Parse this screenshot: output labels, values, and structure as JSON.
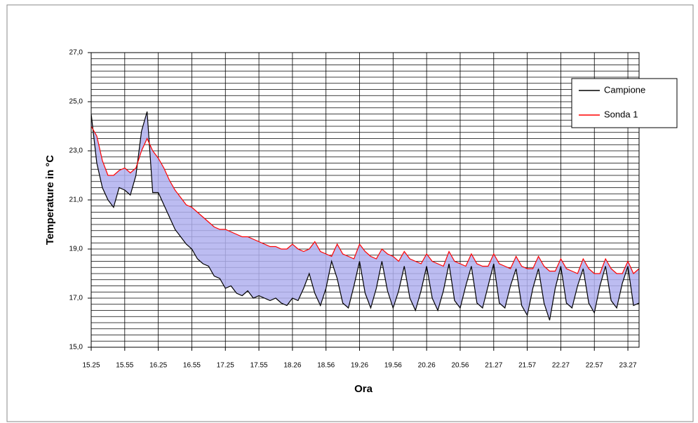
{
  "chart_data": {
    "type": "line",
    "xlabel": "Ora",
    "ylabel": "Temperature in °C",
    "categories": [
      "15.25",
      null,
      null,
      null,
      null,
      null,
      "15.55",
      null,
      null,
      null,
      null,
      null,
      "16.25",
      null,
      null,
      null,
      null,
      null,
      "16.55",
      null,
      null,
      null,
      null,
      null,
      "17.25",
      null,
      null,
      null,
      null,
      null,
      "17.55",
      null,
      null,
      null,
      null,
      null,
      "18.26",
      null,
      null,
      null,
      null,
      null,
      "18.56",
      null,
      null,
      null,
      null,
      null,
      "19.26",
      null,
      null,
      null,
      null,
      null,
      "19.56",
      null,
      null,
      null,
      null,
      null,
      "20.26",
      null,
      null,
      null,
      null,
      null,
      "20.56",
      null,
      null,
      null,
      null,
      null,
      "21.27",
      null,
      null,
      null,
      null,
      null,
      "21.57",
      null,
      null,
      null,
      null,
      null,
      "22.27",
      null,
      null,
      null,
      null,
      null,
      "22.57",
      null,
      null,
      null,
      null,
      null,
      "23.27",
      null,
      null
    ],
    "series": [
      {
        "name": "Campione",
        "color": "#000000",
        "values": [
          24.5,
          22.5,
          21.5,
          21.0,
          20.7,
          21.5,
          21.4,
          21.2,
          22.0,
          23.8,
          24.6,
          21.3,
          21.3,
          20.8,
          20.3,
          19.8,
          19.5,
          19.2,
          19.0,
          18.6,
          18.4,
          18.3,
          17.9,
          17.8,
          17.4,
          17.5,
          17.2,
          17.1,
          17.3,
          17.0,
          17.1,
          17.0,
          16.9,
          17.0,
          16.8,
          16.7,
          17.0,
          16.9,
          17.4,
          18.0,
          17.2,
          16.7,
          17.4,
          18.5,
          17.8,
          16.8,
          16.6,
          17.5,
          18.5,
          17.2,
          16.6,
          17.4,
          18.5,
          17.3,
          16.6,
          17.3,
          18.3,
          17.0,
          16.5,
          17.3,
          18.3,
          17.0,
          16.5,
          17.3,
          18.4,
          16.9,
          16.6,
          17.5,
          18.3,
          16.8,
          16.6,
          17.5,
          18.4,
          16.8,
          16.6,
          17.5,
          18.2,
          16.7,
          16.3,
          17.4,
          18.2,
          16.8,
          16.1,
          17.4,
          18.3,
          16.8,
          16.6,
          17.5,
          18.2,
          16.8,
          16.4,
          17.5,
          18.3,
          16.9,
          16.6,
          17.6,
          18.3,
          16.7,
          16.8
        ]
      },
      {
        "name": "Sonda 1",
        "color": "#ff0000",
        "values": [
          24.0,
          23.6,
          22.6,
          22.0,
          22.0,
          22.2,
          22.3,
          22.1,
          22.3,
          23.0,
          23.5,
          23.0,
          22.7,
          22.3,
          21.8,
          21.4,
          21.1,
          20.8,
          20.7,
          20.5,
          20.3,
          20.1,
          19.9,
          19.8,
          19.8,
          19.7,
          19.6,
          19.5,
          19.5,
          19.4,
          19.3,
          19.2,
          19.1,
          19.1,
          19.0,
          19.0,
          19.2,
          19.0,
          18.9,
          19.0,
          19.3,
          18.9,
          18.8,
          18.7,
          19.2,
          18.8,
          18.7,
          18.6,
          19.2,
          18.9,
          18.7,
          18.6,
          19.0,
          18.8,
          18.7,
          18.5,
          18.9,
          18.6,
          18.5,
          18.4,
          18.8,
          18.5,
          18.4,
          18.3,
          18.9,
          18.5,
          18.4,
          18.3,
          18.8,
          18.4,
          18.3,
          18.3,
          18.8,
          18.4,
          18.3,
          18.2,
          18.7,
          18.3,
          18.2,
          18.2,
          18.7,
          18.3,
          18.1,
          18.1,
          18.6,
          18.2,
          18.1,
          18.0,
          18.6,
          18.2,
          18.0,
          18.0,
          18.6,
          18.2,
          18.0,
          18.0,
          18.5,
          18.0,
          18.2
        ]
      }
    ],
    "fill_between_color": "#b0b0ee",
    "ylim": [
      15,
      27
    ],
    "yticks": [
      {
        "value": 15,
        "label": "15,0"
      },
      {
        "value": 17,
        "label": "17,0"
      },
      {
        "value": 19,
        "label": "19,0"
      },
      {
        "value": 21,
        "label": "21,0"
      },
      {
        "value": 23,
        "label": "23,0"
      },
      {
        "value": 25,
        "label": "25,0"
      },
      {
        "value": 27,
        "label": "27,0"
      }
    ],
    "y_grid": [
      15,
      15.25,
      15.5,
      15.75,
      16,
      16.25,
      16.5,
      16.75,
      17,
      17.25,
      17.5,
      17.75,
      18,
      18.25,
      18.5,
      18.75,
      19,
      19.25,
      19.5,
      19.75,
      20,
      20.25,
      20.5,
      20.75,
      21,
      21.25,
      21.5,
      21.75,
      22,
      22.25,
      22.5,
      22.75,
      23,
      23.25,
      23.5,
      23.75,
      24,
      24.25,
      24.5,
      24.75,
      25,
      25.25,
      25.5,
      25.75,
      26,
      26.25,
      26.5,
      26.75,
      27
    ],
    "grid": true,
    "legend": "upper right"
  }
}
